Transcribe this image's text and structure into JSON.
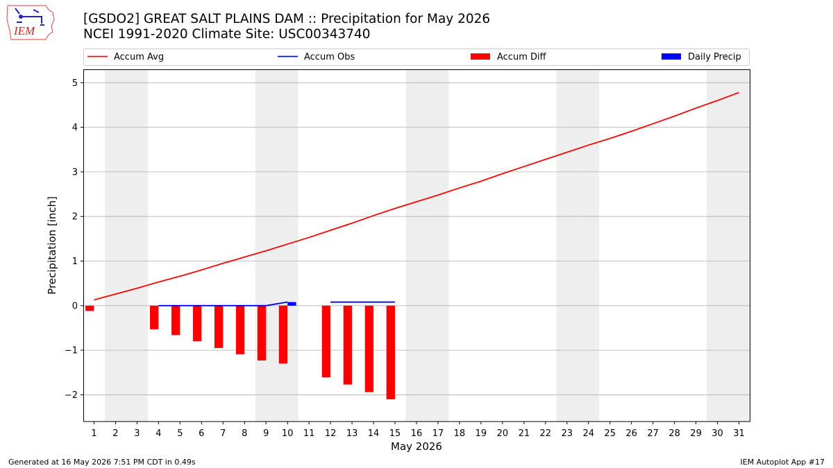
{
  "header": {
    "title_line1": "[GSDO2] GREAT SALT PLAINS DAM :: Precipitation for May 2026",
    "title_line2": "NCEI 1991-2020 Climate Site: USC00343740",
    "logo_text": "IEM"
  },
  "footer": {
    "left": "Generated at 16 May 2026 7:51 PM CDT in 0.49s",
    "right": "IEM Autoplot App #17"
  },
  "chart_data": {
    "type": "line",
    "xlabel": "May 2026",
    "ylabel": "Precipitation [inch]",
    "xlim": [
      0.5,
      31.5
    ],
    "ylim": [
      -2.6,
      5.3
    ],
    "yticks": [
      -2,
      -1,
      0,
      1,
      2,
      3,
      4,
      5
    ],
    "x": [
      1,
      2,
      3,
      4,
      5,
      6,
      7,
      8,
      9,
      10,
      11,
      12,
      13,
      14,
      15,
      16,
      17,
      18,
      19,
      20,
      21,
      22,
      23,
      24,
      25,
      26,
      27,
      28,
      29,
      30,
      31
    ],
    "weekend_days": [
      2,
      3,
      9,
      10,
      16,
      17,
      23,
      24,
      30,
      31
    ],
    "grid": "horizontal",
    "legend_position": "top",
    "series": [
      {
        "name": "Accum Avg",
        "kind": "line",
        "color": "#ff0000",
        "values": [
          0.13,
          0.26,
          0.39,
          0.53,
          0.66,
          0.8,
          0.95,
          1.09,
          1.23,
          1.38,
          1.53,
          1.69,
          1.85,
          2.02,
          2.18,
          2.33,
          2.48,
          2.64,
          2.79,
          2.96,
          3.12,
          3.28,
          3.44,
          3.6,
          3.75,
          3.91,
          4.08,
          4.25,
          4.43,
          4.6,
          4.78
        ]
      },
      {
        "name": "Accum Obs",
        "kind": "line",
        "color": "#0000ff",
        "values": [
          null,
          null,
          null,
          0.0,
          0.0,
          0.0,
          0.0,
          0.0,
          0.0,
          0.08,
          null,
          0.08,
          0.08,
          0.08,
          0.08,
          null,
          null,
          null,
          null,
          null,
          null,
          null,
          null,
          null,
          null,
          null,
          null,
          null,
          null,
          null,
          null
        ]
      },
      {
        "name": "Accum Diff",
        "kind": "bar",
        "color": "#ff0000",
        "offset": -0.2,
        "values": [
          -0.12,
          null,
          null,
          -0.53,
          -0.66,
          -0.8,
          -0.95,
          -1.09,
          -1.23,
          -1.3,
          null,
          -1.61,
          -1.77,
          -1.94,
          -2.1,
          null,
          null,
          null,
          null,
          null,
          null,
          null,
          null,
          null,
          null,
          null,
          null,
          null,
          null,
          null,
          null
        ]
      },
      {
        "name": "Daily Precip",
        "kind": "bar",
        "color": "#0000ff",
        "offset": 0.2,
        "values": [
          null,
          null,
          null,
          null,
          null,
          null,
          null,
          null,
          null,
          0.08,
          null,
          null,
          null,
          null,
          null,
          null,
          null,
          null,
          null,
          null,
          null,
          null,
          null,
          null,
          null,
          null,
          null,
          null,
          null,
          null,
          null
        ]
      }
    ]
  }
}
